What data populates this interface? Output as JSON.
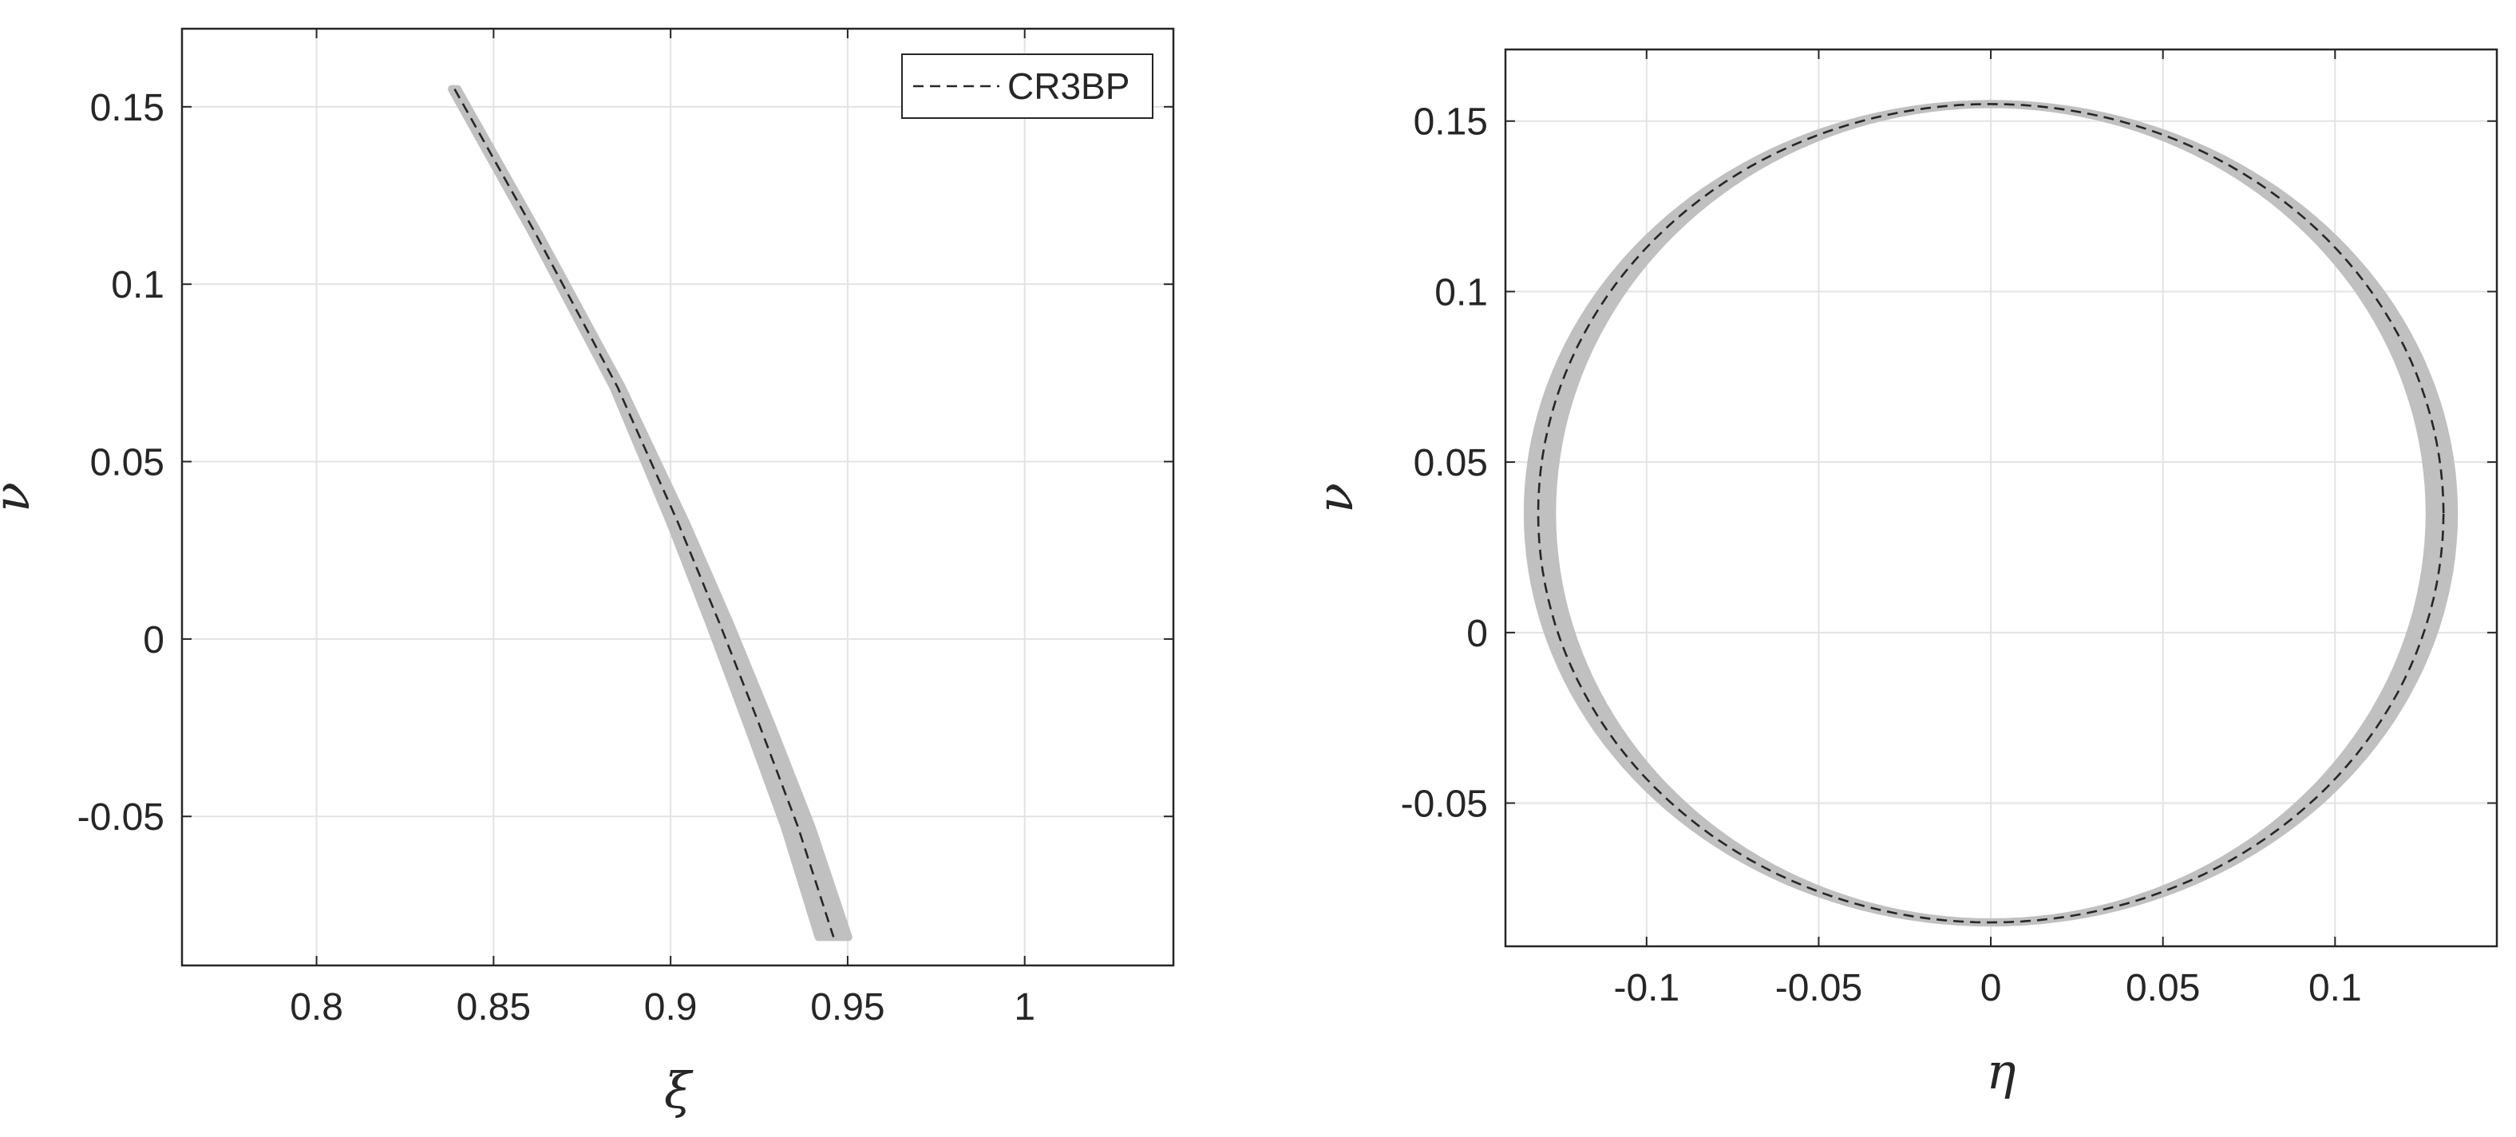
{
  "colors": {
    "band": "#c0c0c0",
    "trajectory": "#262626",
    "grid": "#e3e3e3",
    "axes": "#262626"
  },
  "chart_data": [
    {
      "type": "line",
      "xlabel": "ξ",
      "ylabel": "ν",
      "xlim": [
        0.762,
        1.042
      ],
      "ylim": [
        -0.092,
        0.172
      ],
      "xticks": [
        0.8,
        0.85,
        0.9,
        0.95,
        1
      ],
      "xtick_labels": [
        "0.8",
        "0.85",
        "0.9",
        "0.95",
        "1"
      ],
      "yticks": [
        -0.05,
        0,
        0.05,
        0.1,
        0.15
      ],
      "ytick_labels": [
        "-0.05",
        "0",
        "0.05",
        "0.1",
        "0.15"
      ],
      "grid": true,
      "legend": {
        "position": "top-right",
        "entries": [
          "CR3BP"
        ]
      },
      "series": [
        {
          "name": "CR3BP",
          "style": "dashed",
          "x": [
            0.839,
            0.862,
            0.885,
            0.902,
            0.914,
            0.925,
            0.936,
            0.946
          ],
          "y": [
            0.155,
            0.114,
            0.071,
            0.033,
            0.004,
            -0.024,
            -0.053,
            -0.084
          ]
        }
      ],
      "band": {
        "x": [
          0.839,
          0.862,
          0.885,
          0.902,
          0.914,
          0.925,
          0.936,
          0.946
        ],
        "y": [
          0.155,
          0.114,
          0.071,
          0.033,
          0.004,
          -0.024,
          -0.053,
          -0.084
        ],
        "half_width": [
          0.0008,
          0.0009,
          0.0012,
          0.0022,
          0.0029,
          0.0034,
          0.0038,
          0.0042
        ]
      }
    },
    {
      "type": "line",
      "xlabel": "η",
      "ylabel": "ν",
      "xlim": [
        -0.141,
        0.147
      ],
      "ylim": [
        -0.092,
        0.171
      ],
      "xticks": [
        -0.1,
        -0.05,
        0,
        0.05,
        0.1
      ],
      "xtick_labels": [
        "-0.1",
        "-0.05",
        "0",
        "0.05",
        "0.1"
      ],
      "yticks": [
        -0.05,
        0,
        0.05,
        0.1,
        0.15
      ],
      "ytick_labels": [
        "-0.05",
        "0",
        "0.05",
        "0.1",
        "0.15"
      ],
      "grid": true,
      "series": [
        {
          "name": "CR3BP",
          "style": "dashed",
          "center": [
            0,
            0.035
          ],
          "radius_eta": 0.1315,
          "radius_nu": 0.12
        }
      ],
      "band": {
        "center": [
          0,
          0.035
        ],
        "radius_eta_inner": 0.127,
        "radius_eta_outer": 0.135,
        "radius_nu": 0.12,
        "nu_half_thickness": 0.0005
      }
    }
  ]
}
